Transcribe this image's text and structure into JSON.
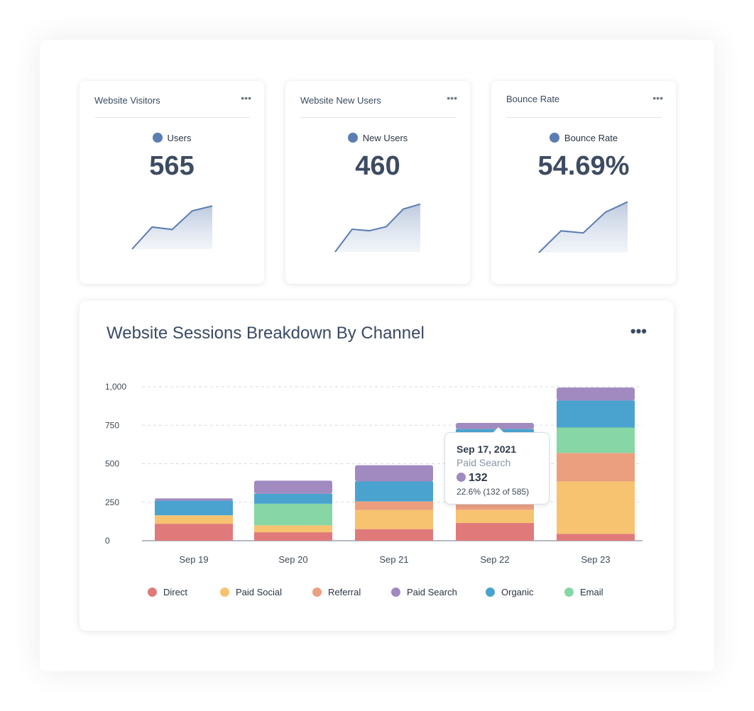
{
  "kpis": [
    {
      "title": "Website Visitors",
      "legend": "Users",
      "value": "565",
      "more": "•••",
      "spark": [
        0,
        0.45,
        0.4,
        0.78,
        0.88
      ]
    },
    {
      "title": "Website New Users",
      "legend": "New Users",
      "value": "460",
      "more": "•••",
      "spark": [
        0,
        0.45,
        0.42,
        0.5,
        0.85,
        0.95
      ]
    },
    {
      "title": "Bounce Rate",
      "legend": "Bounce Rate",
      "value": "54.69%",
      "more": "•••",
      "spark": [
        0,
        0.42,
        0.38,
        0.78,
        0.98
      ]
    }
  ],
  "colors": {
    "kpi_line": "#5b7db2",
    "Direct": "#e07a7a",
    "Paid Social": "#f7c370",
    "Referral": "#eb9f7f",
    "Paid Search": "#a08abf",
    "Organic": "#4aa3cf",
    "Email": "#86d7a5"
  },
  "main": {
    "title": "Website Sessions Breakdown By Channel",
    "more": "•••"
  },
  "tooltip": {
    "date": "Sep 17, 2021",
    "series": "Paid Search",
    "value": "132",
    "pct": "22.6% (132 of 585)"
  },
  "chart_data": {
    "type": "bar",
    "stacked": true,
    "categories": [
      "Sep 19",
      "Sep 20",
      "Sep 21",
      "Sep 22",
      "Sep 23"
    ],
    "ylim": [
      0,
      1000
    ],
    "yticks": [
      0,
      250,
      500,
      750,
      1000
    ],
    "ytick_labels": [
      "0",
      "250",
      "500",
      "750",
      "1,000"
    ],
    "grid": true,
    "legend_position": "bottom",
    "series": [
      {
        "name": "Direct",
        "values": [
          110,
          55,
          75,
          115,
          45
        ]
      },
      {
        "name": "Paid Social",
        "values": [
          55,
          45,
          125,
          85,
          340
        ]
      },
      {
        "name": "Referral",
        "values": [
          0,
          0,
          55,
          50,
          185
        ]
      },
      {
        "name": "Email",
        "values": [
          0,
          140,
          0,
          0,
          165
        ]
      },
      {
        "name": "Organic",
        "values": [
          95,
          65,
          130,
          475,
          175
        ]
      },
      {
        "name": "Paid Search",
        "values": [
          15,
          85,
          105,
          40,
          85
        ]
      }
    ],
    "legend_order": [
      "Direct",
      "Paid Social",
      "Referral",
      "Paid Search",
      "Organic",
      "Email"
    ]
  }
}
